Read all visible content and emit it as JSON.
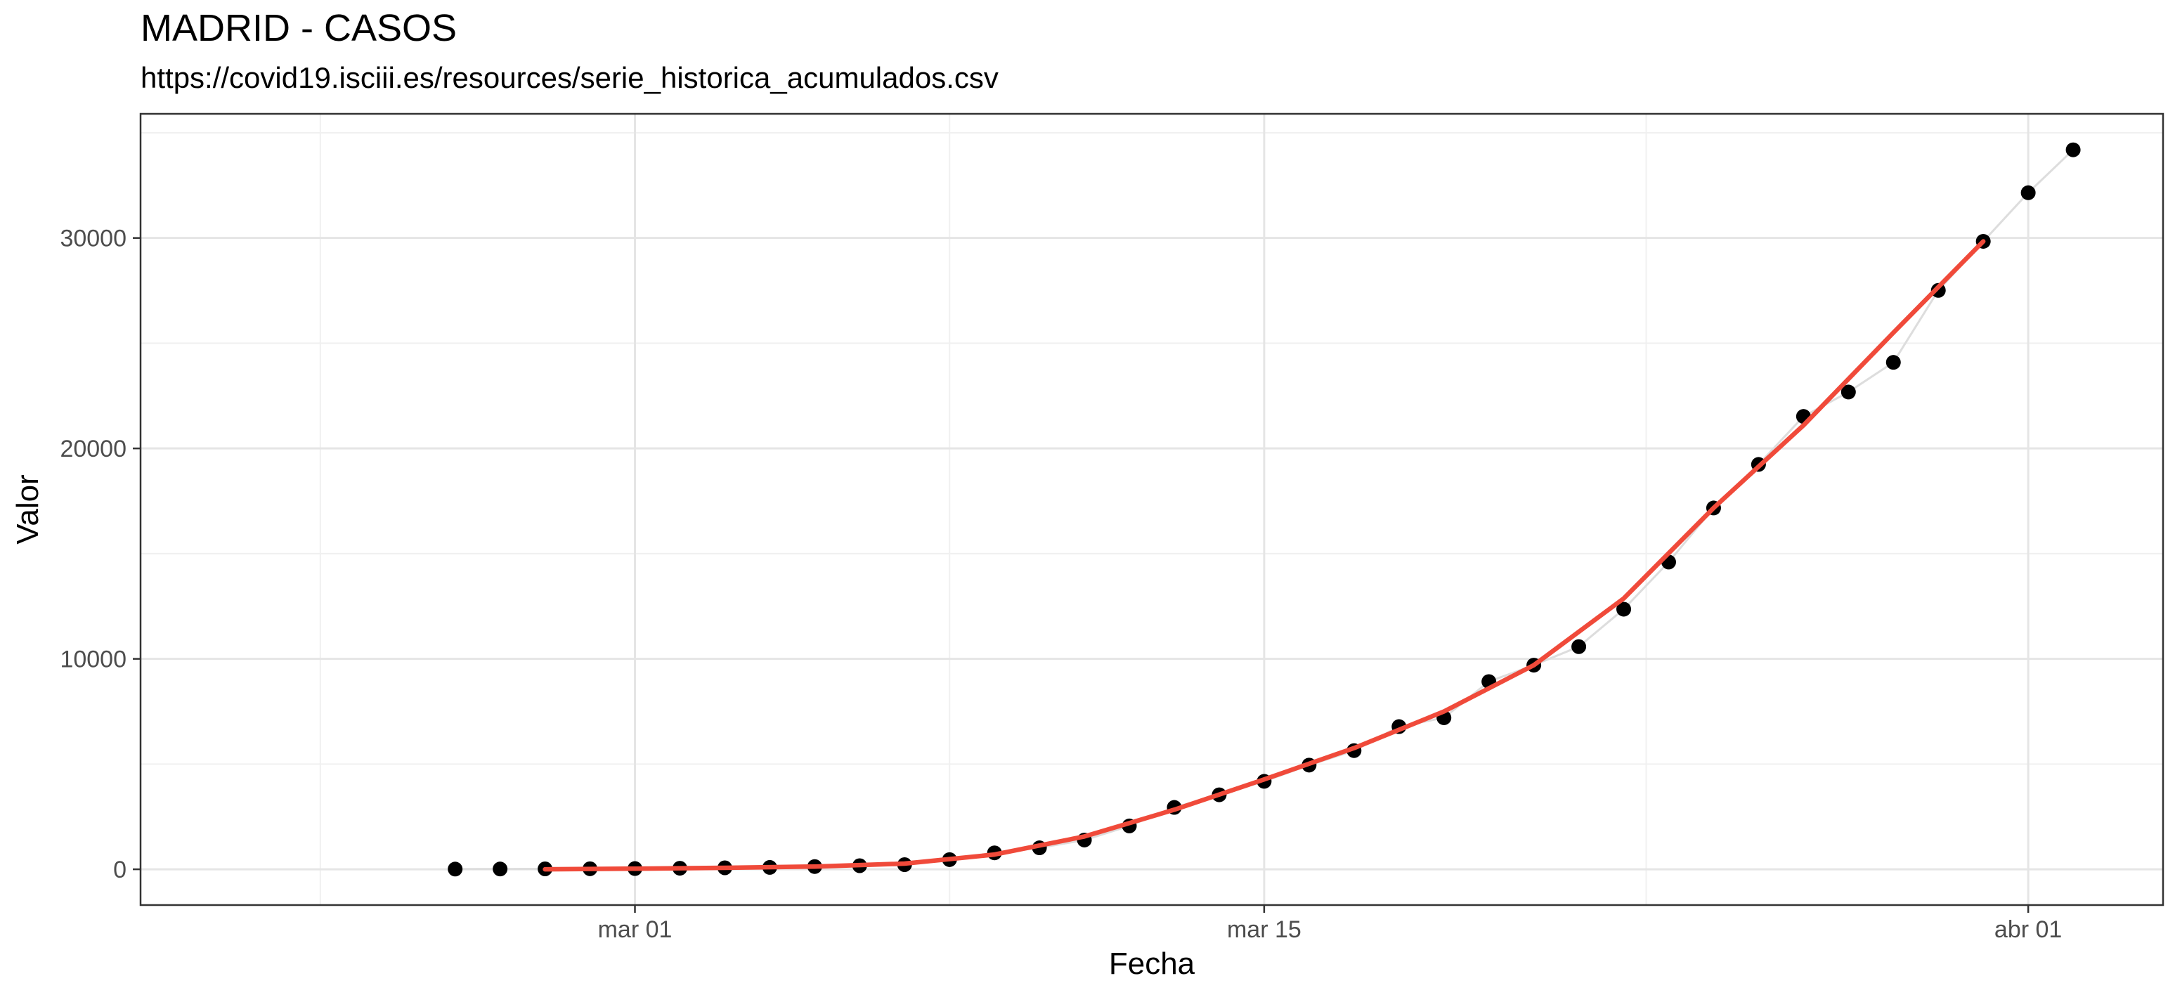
{
  "chart_data": {
    "type": "scatter",
    "title": "MADRID - CASOS",
    "subtitle": "https://covid19.isciii.es/resources/serie_historica_acumulados.csv",
    "xlabel": "Fecha",
    "ylabel": "Valor",
    "x_tick_labels": [
      "mar 01",
      "mar 15",
      "abr 01"
    ],
    "x_tick_dates": [
      "2020-03-01",
      "2020-03-15",
      "2020-04-01"
    ],
    "xlim": [
      "2020-02-19",
      "2020-04-04"
    ],
    "ylim": [
      -1700,
      35900
    ],
    "y_ticks": [
      0,
      10000,
      20000,
      30000
    ],
    "y_tick_labels": [
      "0",
      "10000",
      "20000",
      "30000"
    ],
    "grid": true,
    "theme": "white background with light grey gridlines and a black panel border",
    "series": [
      {
        "style": "points joined by a thin light grey line",
        "color": "#000000",
        "line_color": "#dddddd",
        "x": [
          "2020-02-26",
          "2020-02-27",
          "2020-02-28",
          "2020-02-29",
          "2020-03-01",
          "2020-03-02",
          "2020-03-03",
          "2020-03-04",
          "2020-03-05",
          "2020-03-06",
          "2020-03-07",
          "2020-03-08",
          "2020-03-09",
          "2020-03-10",
          "2020-03-11",
          "2020-03-12",
          "2020-03-13",
          "2020-03-14",
          "2020-03-15",
          "2020-03-16",
          "2020-03-17",
          "2020-03-18",
          "2020-03-19",
          "2020-03-20",
          "2020-03-21",
          "2020-03-22",
          "2020-03-23",
          "2020-03-24",
          "2020-03-25",
          "2020-03-26",
          "2020-03-27",
          "2020-03-28",
          "2020-03-29",
          "2020-03-30",
          "2020-03-31",
          "2020-04-01",
          "2020-04-02"
        ],
        "y": [
          10,
          15,
          20,
          25,
          35,
          50,
          70,
          90,
          130,
          170,
          220,
          460,
          780,
          1020,
          1390,
          2060,
          2940,
          3540,
          4180,
          4950,
          5640,
          6780,
          7200,
          8920,
          9700,
          10580,
          12360,
          14600,
          17170,
          19240,
          21520,
          22680,
          24090,
          27510,
          29840,
          32150,
          34190
        ]
      },
      {
        "style": "smoothed red trend line",
        "color": "#f04a3a",
        "x": [
          "2020-02-28",
          "2020-03-01",
          "2020-03-03",
          "2020-03-05",
          "2020-03-07",
          "2020-03-09",
          "2020-03-11",
          "2020-03-13",
          "2020-03-15",
          "2020-03-17",
          "2020-03-19",
          "2020-03-21",
          "2020-03-23",
          "2020-03-25",
          "2020-03-27",
          "2020-03-29",
          "2020-03-31"
        ],
        "y": [
          0,
          30,
          70,
          130,
          270,
          700,
          1560,
          2830,
          4270,
          5760,
          7500,
          9700,
          12870,
          17170,
          21100,
          25500,
          29840
        ]
      }
    ]
  }
}
